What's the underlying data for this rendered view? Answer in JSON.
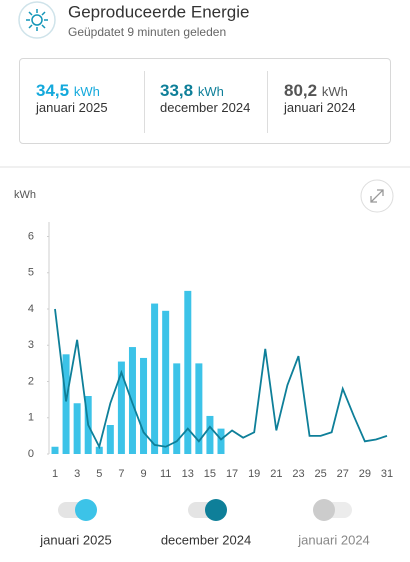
{
  "header": {
    "title": "Geproduceerde Energie",
    "subtitle": "Geüpdatet 9 minuten geleden"
  },
  "summary": [
    {
      "value": "34,5",
      "unit": "kWh",
      "label": "januari 2025",
      "color": "#14a9dc"
    },
    {
      "value": "33,8",
      "unit": "kWh",
      "label": "december 2024",
      "color": "#0e7f99"
    },
    {
      "value": "80,2",
      "unit": "kWh",
      "label": "januari 2024",
      "color": "#555555"
    }
  ],
  "chart_data": {
    "type": "bar",
    "y_label": "kWh",
    "categories": [
      "1",
      null,
      "3",
      null,
      "5",
      null,
      "7",
      null,
      "9",
      null,
      "11",
      null,
      "13",
      null,
      "15",
      null,
      "17",
      null,
      "19",
      null,
      "21",
      null,
      "23",
      null,
      "25",
      null,
      "27",
      null,
      "29",
      null,
      "31"
    ],
    "series": [
      {
        "name": "januari 2025",
        "type": "bar",
        "color": "#3cc3e8",
        "visible": true,
        "values": [
          0.2,
          2.75,
          1.4,
          1.6,
          0.2,
          0.8,
          2.55,
          2.95,
          2.65,
          4.15,
          3.95,
          2.5,
          4.5,
          2.5,
          1.05,
          0.7,
          null,
          null,
          null,
          null,
          null,
          null,
          null,
          null,
          null,
          null,
          null,
          null,
          null,
          null,
          null
        ]
      },
      {
        "name": "december 2024",
        "type": "line",
        "color": "#0e7f99",
        "visible": true,
        "values": [
          4.0,
          1.45,
          3.15,
          0.8,
          0.2,
          1.4,
          2.25,
          1.4,
          0.6,
          0.25,
          0.2,
          0.35,
          0.7,
          0.35,
          0.75,
          0.4,
          0.65,
          0.45,
          0.6,
          2.9,
          0.65,
          1.9,
          2.7,
          0.5,
          0.5,
          0.6,
          1.8,
          1.05,
          0.35,
          0.4,
          0.5
        ]
      },
      {
        "name": "januari 2024",
        "type": "line",
        "color": "#cccccc",
        "visible": false
      }
    ],
    "ylim": [
      0,
      6.4
    ],
    "yticks": [
      0,
      1,
      2,
      3,
      4,
      5,
      6
    ]
  }
}
